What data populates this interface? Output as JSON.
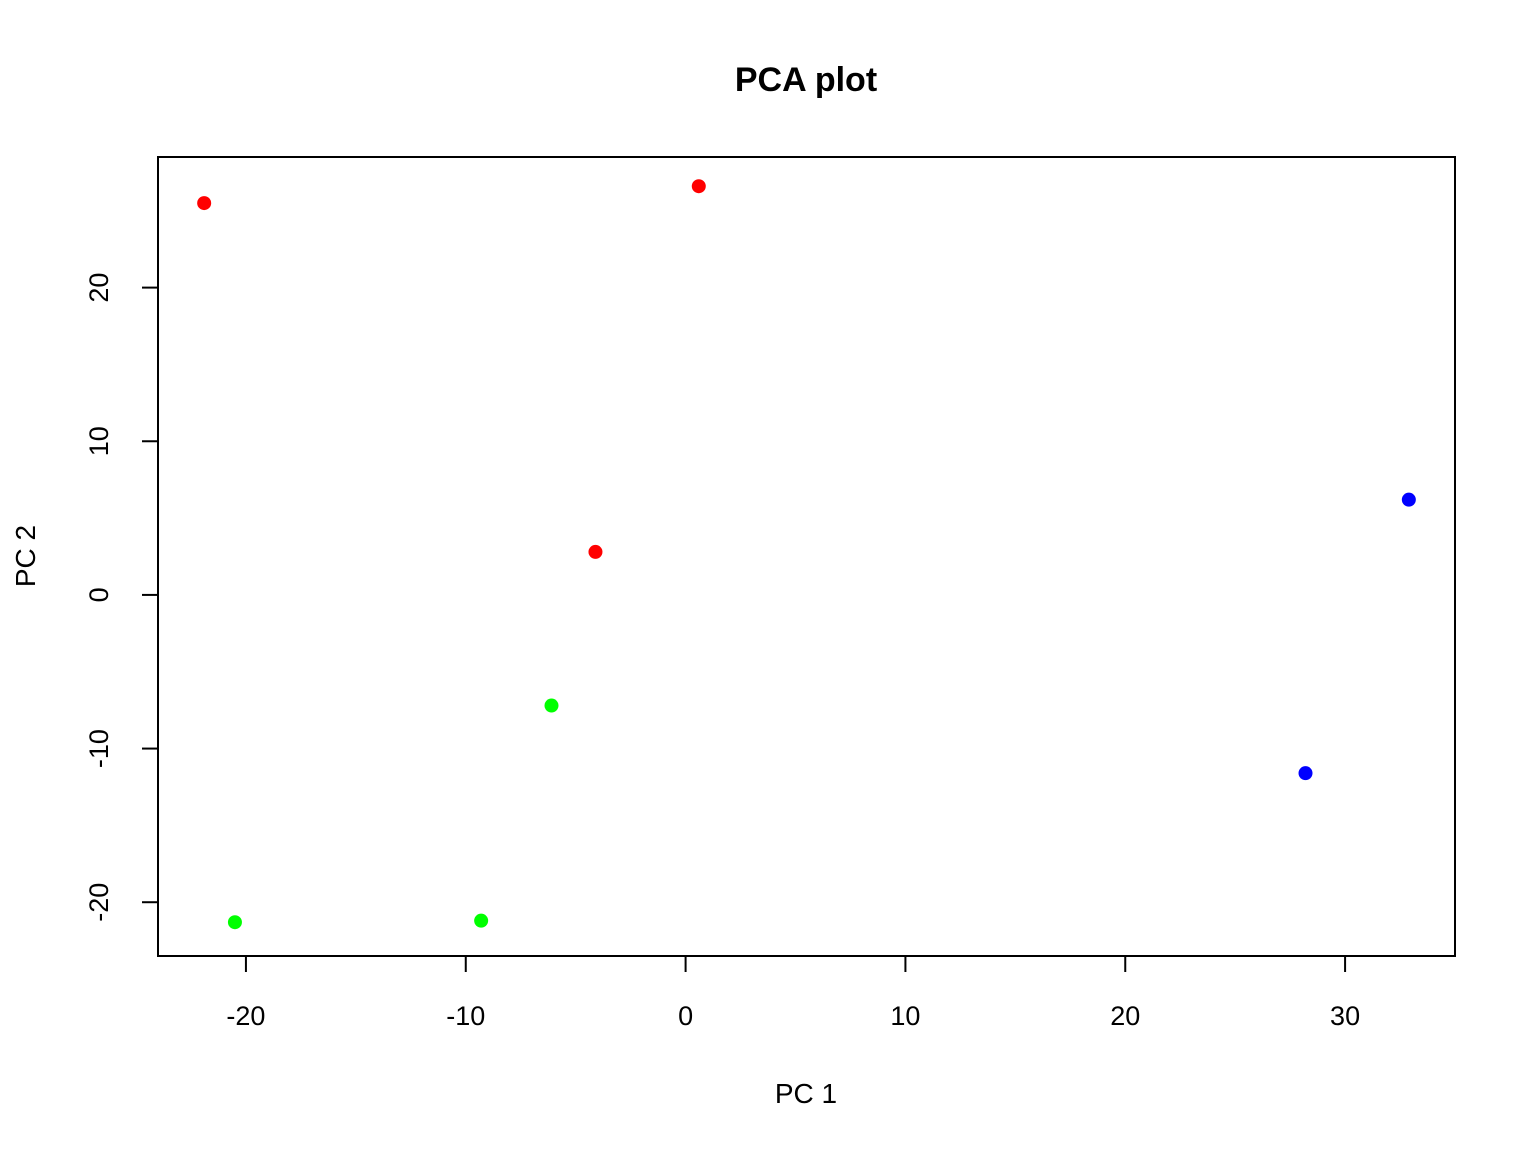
{
  "chart_data": {
    "type": "scatter",
    "title": "PCA plot",
    "xlabel": "PC 1",
    "ylabel": "PC 2",
    "xlim": [
      -24,
      35
    ],
    "ylim": [
      -23.5,
      28.5
    ],
    "x_ticks": [
      -20,
      -10,
      0,
      10,
      20,
      30
    ],
    "y_ticks": [
      -20,
      -10,
      0,
      10,
      20
    ],
    "grid": false,
    "legend": "none",
    "series": [
      {
        "color": "#ff0000",
        "points": [
          {
            "x": -21.9,
            "y": 25.5
          },
          {
            "x": 0.6,
            "y": 26.6
          },
          {
            "x": -4.1,
            "y": 2.8
          }
        ]
      },
      {
        "color": "#00ff00",
        "points": [
          {
            "x": -6.1,
            "y": -7.2
          },
          {
            "x": -20.5,
            "y": -21.3
          },
          {
            "x": -9.3,
            "y": -21.2
          }
        ]
      },
      {
        "color": "#0000ff",
        "points": [
          {
            "x": 32.9,
            "y": 6.2
          },
          {
            "x": 28.2,
            "y": -11.6
          }
        ]
      }
    ]
  }
}
